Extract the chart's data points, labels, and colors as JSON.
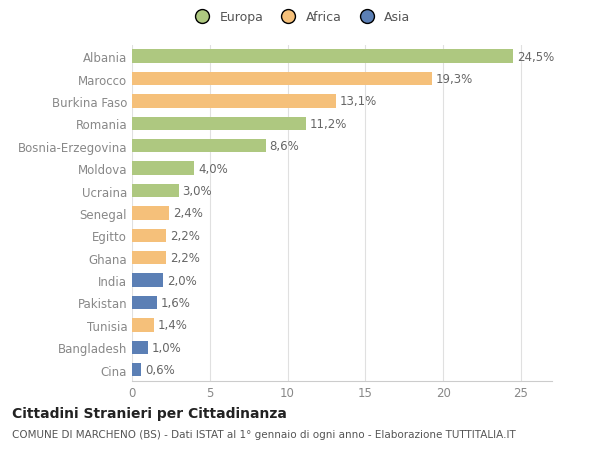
{
  "countries": [
    "Albania",
    "Marocco",
    "Burkina Faso",
    "Romania",
    "Bosnia-Erzegovina",
    "Moldova",
    "Ucraina",
    "Senegal",
    "Egitto",
    "Ghana",
    "India",
    "Pakistan",
    "Tunisia",
    "Bangladesh",
    "Cina"
  ],
  "values": [
    24.5,
    19.3,
    13.1,
    11.2,
    8.6,
    4.0,
    3.0,
    2.4,
    2.2,
    2.2,
    2.0,
    1.6,
    1.4,
    1.0,
    0.6
  ],
  "labels": [
    "24,5%",
    "19,3%",
    "13,1%",
    "11,2%",
    "8,6%",
    "4,0%",
    "3,0%",
    "2,4%",
    "2,2%",
    "2,2%",
    "2,0%",
    "1,6%",
    "1,4%",
    "1,0%",
    "0,6%"
  ],
  "continents": [
    "Europa",
    "Africa",
    "Africa",
    "Europa",
    "Europa",
    "Europa",
    "Europa",
    "Africa",
    "Africa",
    "Africa",
    "Asia",
    "Asia",
    "Africa",
    "Asia",
    "Asia"
  ],
  "colors": {
    "Europa": "#aec880",
    "Africa": "#f5c07a",
    "Asia": "#5b7fb5"
  },
  "xlim": [
    0,
    27
  ],
  "xticks": [
    0,
    5,
    10,
    15,
    20,
    25
  ],
  "bg_color": "#ffffff",
  "grid_color": "#e0e0e0",
  "title": "Cittadini Stranieri per Cittadinanza",
  "subtitle": "COMUNE DI MARCHENO (BS) - Dati ISTAT al 1° gennaio di ogni anno - Elaborazione TUTTITALIA.IT",
  "bar_height": 0.6,
  "label_fontsize": 8.5,
  "ytick_fontsize": 8.5,
  "xtick_fontsize": 8.5,
  "title_fontsize": 10,
  "subtitle_fontsize": 7.5,
  "legend_fontsize": 9
}
